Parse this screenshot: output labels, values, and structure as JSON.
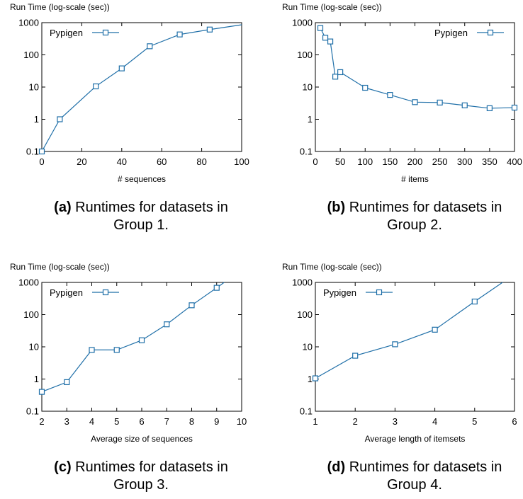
{
  "chart_data": [
    {
      "type": "line",
      "ylabel": "Run Time (log-scale (sec))",
      "xlabel": "# sequences",
      "yscale": "log",
      "ylim": [
        0.1,
        1000
      ],
      "xlim": [
        0,
        100
      ],
      "xticks": [
        0,
        20,
        40,
        60,
        80,
        100
      ],
      "yticks": [
        0.1,
        1,
        10,
        100,
        1000
      ],
      "ytick_labels": [
        "0.1",
        "1",
        "10",
        "100",
        "1000"
      ],
      "legend_position": "top-left",
      "grid": false,
      "series": [
        {
          "name": "Pypigen",
          "color": "#1f6fa8",
          "marker": "square",
          "x": [
            0,
            9,
            27,
            40,
            54,
            69,
            84
          ],
          "y": [
            0.1,
            1.0,
            10.5,
            38,
            185,
            430,
            610
          ],
          "line_end": [
            100,
            860
          ]
        }
      ],
      "caption_label": "(a)",
      "caption_line1": "Runtimes for datasets in",
      "caption_line2": "Group 1."
    },
    {
      "type": "line",
      "ylabel": "Run Time (log-scale (sec))",
      "xlabel": "# items",
      "yscale": "log",
      "ylim": [
        0.1,
        1000
      ],
      "xlim": [
        0,
        400
      ],
      "xticks": [
        0,
        50,
        100,
        150,
        200,
        250,
        300,
        350,
        400
      ],
      "yticks": [
        0.1,
        1,
        10,
        100,
        1000
      ],
      "ytick_labels": [
        "0.1",
        "1",
        "10",
        "100",
        "1000"
      ],
      "legend_position": "top-right",
      "grid": false,
      "series": [
        {
          "name": "Pypigen",
          "color": "#1f6fa8",
          "marker": "square",
          "x": [
            10,
            20,
            30,
            40,
            50,
            100,
            150,
            200,
            250,
            300,
            350,
            400
          ],
          "y": [
            680,
            340,
            260,
            21,
            29,
            9.5,
            5.7,
            3.4,
            3.3,
            2.7,
            2.2,
            2.3
          ]
        }
      ],
      "caption_label": "(b)",
      "caption_line1": "Runtimes for datasets in",
      "caption_line2": "Group 2."
    },
    {
      "type": "line",
      "ylabel": "Run Time (log-scale (sec))",
      "xlabel": "Average size of sequences",
      "yscale": "log",
      "ylim": [
        0.1,
        1000
      ],
      "xlim": [
        2,
        10
      ],
      "xticks": [
        2,
        3,
        4,
        5,
        6,
        7,
        8,
        9,
        10
      ],
      "yticks": [
        0.1,
        1,
        10,
        100,
        1000
      ],
      "ytick_labels": [
        "0.1",
        "1",
        "10",
        "100",
        "1000"
      ],
      "legend_position": "top-left",
      "grid": false,
      "series": [
        {
          "name": "Pypigen",
          "color": "#1f6fa8",
          "marker": "square",
          "x": [
            2,
            3,
            4,
            5,
            6,
            7,
            8,
            9
          ],
          "y": [
            0.4,
            0.8,
            8.0,
            8.0,
            16,
            50,
            195,
            680
          ],
          "line_end": [
            9.3,
            1000
          ]
        }
      ],
      "caption_label": "(c)",
      "caption_line1": "Runtimes for datasets in",
      "caption_line2": "Group 3."
    },
    {
      "type": "line",
      "ylabel": "Run Time (log-scale (sec))",
      "xlabel": "Average length of itemsets",
      "yscale": "log",
      "ylim": [
        0.1,
        1000
      ],
      "xlim": [
        1,
        6
      ],
      "xticks": [
        1,
        2,
        3,
        4,
        5,
        6
      ],
      "yticks": [
        0.1,
        1,
        10,
        100,
        1000
      ],
      "ytick_labels": [
        "0.1",
        "1",
        "10",
        "100",
        "1000"
      ],
      "legend_position": "top-left",
      "grid": false,
      "series": [
        {
          "name": "Pypigen",
          "color": "#1f6fa8",
          "marker": "square",
          "x": [
            1,
            2,
            3,
            4,
            5
          ],
          "y": [
            1.05,
            5.3,
            12,
            34,
            255
          ],
          "line_end": [
            5.7,
            1000
          ]
        }
      ],
      "caption_label": "(d)",
      "caption_line1": "Runtimes for datasets in",
      "caption_line2": "Group 4."
    }
  ]
}
